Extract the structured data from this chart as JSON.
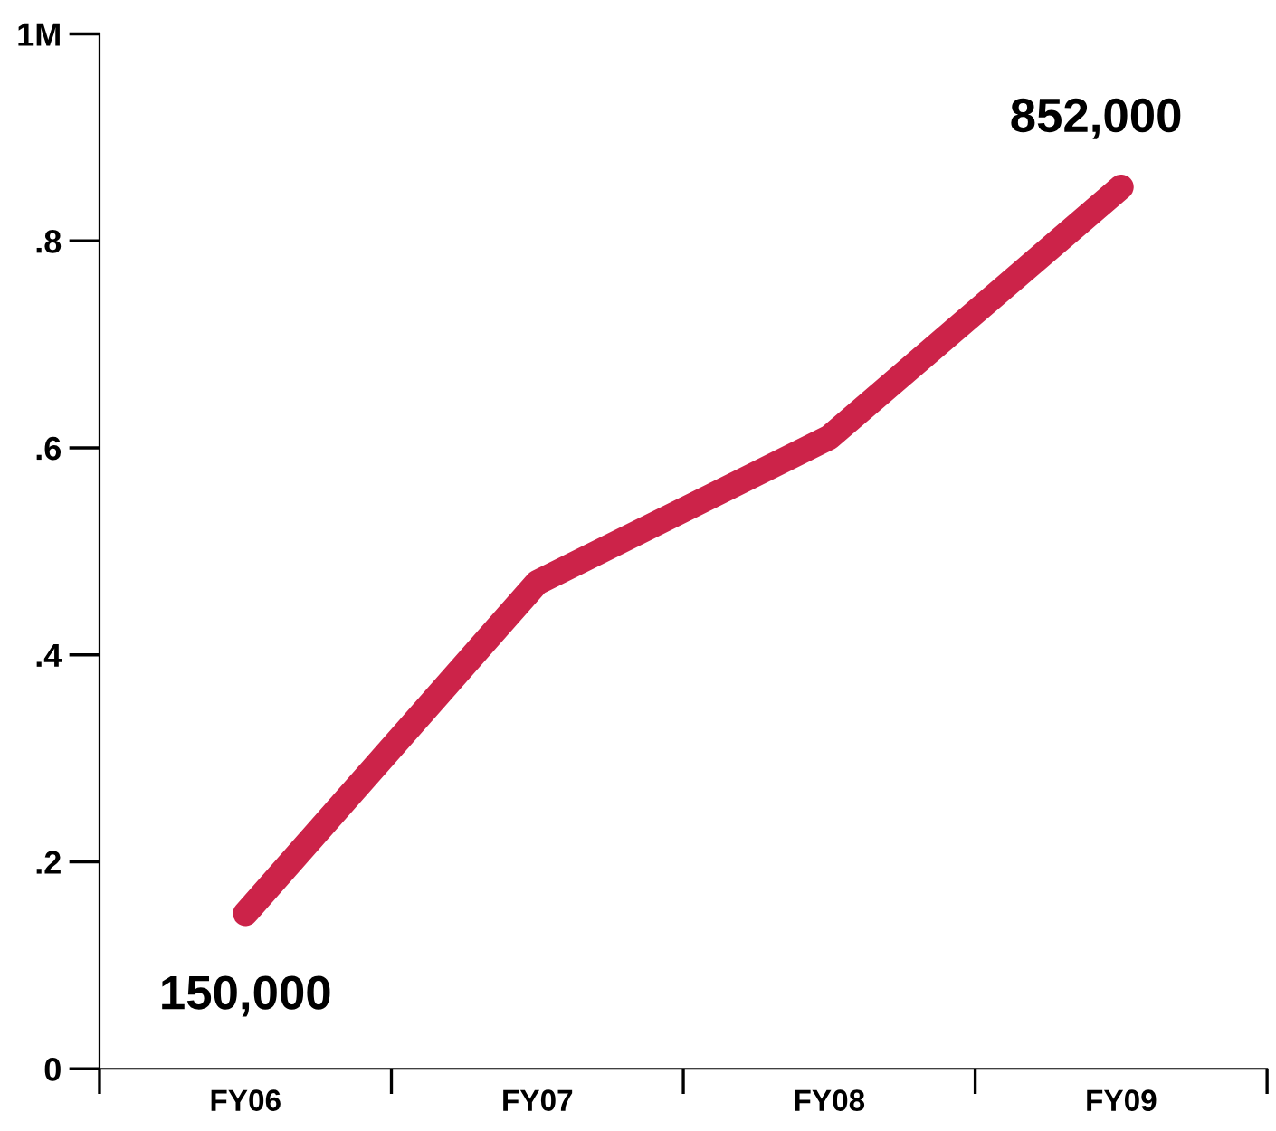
{
  "chart_data": {
    "type": "line",
    "categories": [
      "FY06",
      "FY07",
      "FY08",
      "FY09"
    ],
    "series": [
      {
        "color": "#cc2349",
        "values": [
          0.15,
          0.47,
          0.61,
          0.852
        ]
      }
    ],
    "ylim": [
      0,
      1
    ],
    "yticks": [
      {
        "value": 0,
        "label": "0"
      },
      {
        "value": 0.2,
        "label": ".2"
      },
      {
        "value": 0.4,
        "label": ".4"
      },
      {
        "value": 0.6,
        "label": ".6"
      },
      {
        "value": 0.8,
        "label": ".8"
      },
      {
        "value": 1,
        "label": "1M"
      }
    ],
    "annotations": [
      {
        "text": "150,000",
        "x": "FY06",
        "y": 0.15
      },
      {
        "text": "852,000",
        "x": "FY09",
        "y": 0.852
      }
    ],
    "grid": false,
    "legend": false,
    "line_style": "solid"
  }
}
